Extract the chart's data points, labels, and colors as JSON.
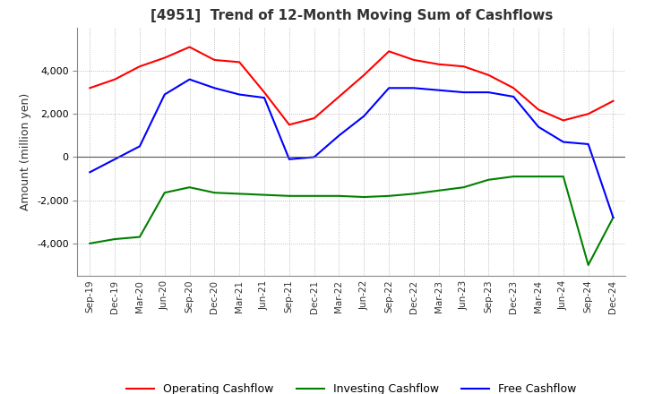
{
  "title": "[4951]  Trend of 12-Month Moving Sum of Cashflows",
  "ylabel": "Amount (million yen)",
  "xlabels": [
    "Sep-19",
    "Dec-19",
    "Mar-20",
    "Jun-20",
    "Sep-20",
    "Dec-20",
    "Mar-21",
    "Jun-21",
    "Sep-21",
    "Dec-21",
    "Mar-22",
    "Jun-22",
    "Sep-22",
    "Dec-22",
    "Mar-23",
    "Jun-23",
    "Sep-23",
    "Dec-23",
    "Mar-24",
    "Jun-24",
    "Sep-24",
    "Dec-24"
  ],
  "operating": [
    3200,
    3600,
    4200,
    4600,
    5100,
    4500,
    4400,
    3000,
    1500,
    1800,
    2800,
    3800,
    4900,
    4500,
    4300,
    4200,
    3800,
    3200,
    2200,
    1700,
    2000,
    2600
  ],
  "investing": [
    -4000,
    -3800,
    -3700,
    -1650,
    -1400,
    -1650,
    -1700,
    -1750,
    -1800,
    -1800,
    -1800,
    -1850,
    -1800,
    -1700,
    -1550,
    -1400,
    -1050,
    -900,
    -900,
    -900,
    -5000,
    -2800
  ],
  "free": [
    -700,
    -100,
    500,
    2900,
    3600,
    3200,
    2900,
    2750,
    -100,
    0,
    1000,
    1900,
    3200,
    3200,
    3100,
    3000,
    3000,
    2800,
    1400,
    700,
    600,
    -2800
  ],
  "operating_color": "#ff0000",
  "investing_color": "#008000",
  "free_color": "#0000ff",
  "ylim": [
    -5500,
    6000
  ],
  "yticks": [
    -4000,
    -2000,
    0,
    2000,
    4000
  ],
  "grid_color": "#aaaaaa",
  "background_color": "#ffffff"
}
